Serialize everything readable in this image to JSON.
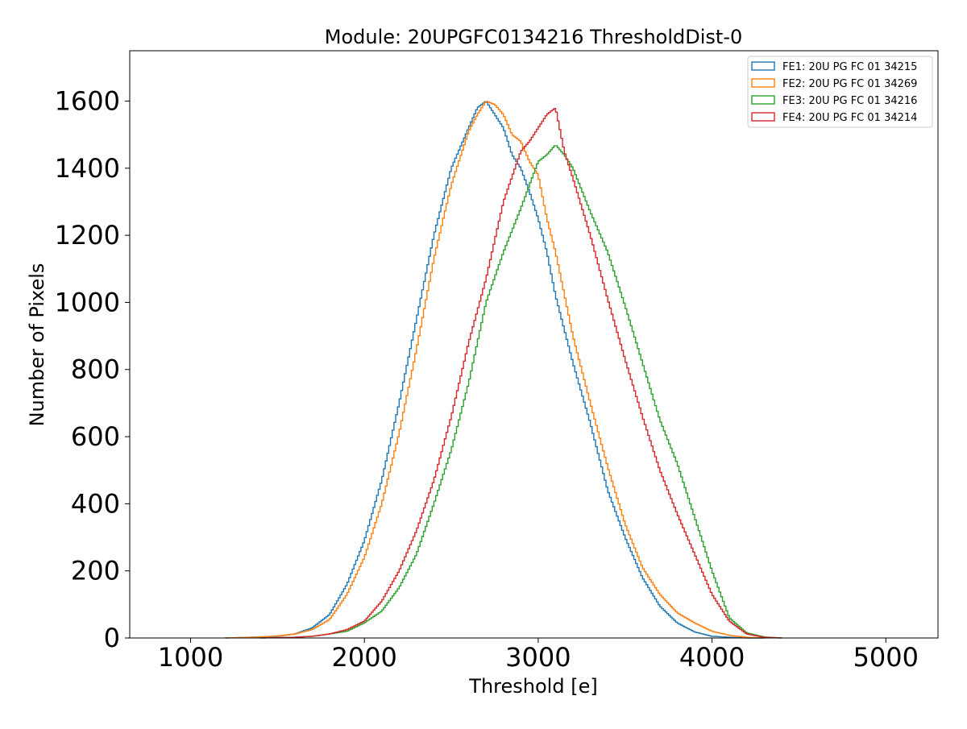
{
  "chart_data": {
    "type": "line",
    "style": "step-histogram",
    "title": "Module: 20UPGFC0134216 ThresholdDist-0",
    "xlabel": "Threshold [e]",
    "ylabel": "Number of Pixels",
    "xlim": [
      650,
      5300
    ],
    "ylim": [
      0,
      1750
    ],
    "xticks": [
      1000,
      2000,
      3000,
      4000,
      5000
    ],
    "yticks": [
      0,
      200,
      400,
      600,
      800,
      1000,
      1200,
      1400,
      1600
    ],
    "grid": false,
    "legend_position": "top-right",
    "bin_width": 10,
    "series": [
      {
        "name": "FE1: 20U PG FC 01 34215",
        "color": "#1f77b4",
        "x": [
          1200,
          1400,
          1500,
          1600,
          1700,
          1800,
          1900,
          2000,
          2100,
          2200,
          2300,
          2400,
          2500,
          2600,
          2650,
          2700,
          2750,
          2800,
          2850,
          2900,
          2950,
          3000,
          3050,
          3100,
          3200,
          3300,
          3400,
          3500,
          3600,
          3700,
          3800,
          3900,
          4000,
          4100,
          4200,
          4300
        ],
        "values": [
          0,
          3,
          5,
          12,
          30,
          70,
          160,
          290,
          470,
          700,
          950,
          1200,
          1400,
          1520,
          1580,
          1600,
          1560,
          1520,
          1440,
          1400,
          1330,
          1250,
          1150,
          1020,
          820,
          640,
          440,
          300,
          180,
          95,
          45,
          18,
          5,
          2,
          0,
          0
        ]
      },
      {
        "name": "FE2: 20U PG FC 01 34269",
        "color": "#ff7f0e",
        "x": [
          1200,
          1400,
          1500,
          1600,
          1700,
          1800,
          1900,
          2000,
          2100,
          2200,
          2300,
          2400,
          2500,
          2600,
          2650,
          2700,
          2750,
          2800,
          2850,
          2900,
          2950,
          3000,
          3050,
          3100,
          3200,
          3300,
          3400,
          3500,
          3600,
          3700,
          3800,
          3900,
          4000,
          4100,
          4200,
          4300
        ],
        "values": [
          0,
          3,
          6,
          12,
          25,
          55,
          130,
          240,
          400,
          610,
          860,
          1130,
          1350,
          1510,
          1560,
          1600,
          1590,
          1560,
          1500,
          1480,
          1420,
          1380,
          1250,
          1150,
          900,
          700,
          510,
          340,
          210,
          130,
          75,
          45,
          20,
          8,
          2,
          0
        ]
      },
      {
        "name": "FE3: 20U PG FC 01 34216",
        "color": "#2ca02c",
        "x": [
          1400,
          1600,
          1700,
          1800,
          1900,
          2000,
          2100,
          2200,
          2300,
          2400,
          2500,
          2600,
          2700,
          2800,
          2900,
          3000,
          3050,
          3100,
          3150,
          3200,
          3300,
          3400,
          3500,
          3600,
          3700,
          3800,
          3900,
          4000,
          4100,
          4200,
          4300,
          4400
        ],
        "values": [
          0,
          2,
          5,
          12,
          20,
          45,
          80,
          150,
          250,
          400,
          560,
          760,
          1000,
          1150,
          1280,
          1420,
          1440,
          1470,
          1440,
          1400,
          1270,
          1150,
          990,
          820,
          650,
          520,
          360,
          200,
          60,
          15,
          3,
          0
        ]
      },
      {
        "name": "FE4: 20U PG FC 01 34214",
        "color": "#d62728",
        "x": [
          1400,
          1600,
          1700,
          1800,
          1900,
          2000,
          2100,
          2200,
          2300,
          2400,
          2500,
          2600,
          2700,
          2800,
          2900,
          2950,
          3000,
          3050,
          3100,
          3150,
          3200,
          3300,
          3400,
          3500,
          3600,
          3700,
          3800,
          3900,
          4000,
          4100,
          4200,
          4300,
          4400
        ],
        "values": [
          0,
          2,
          5,
          12,
          25,
          50,
          110,
          200,
          320,
          470,
          660,
          880,
          1070,
          1300,
          1450,
          1480,
          1520,
          1560,
          1580,
          1450,
          1370,
          1200,
          1010,
          830,
          660,
          500,
          370,
          250,
          130,
          50,
          12,
          2,
          0
        ]
      }
    ]
  }
}
